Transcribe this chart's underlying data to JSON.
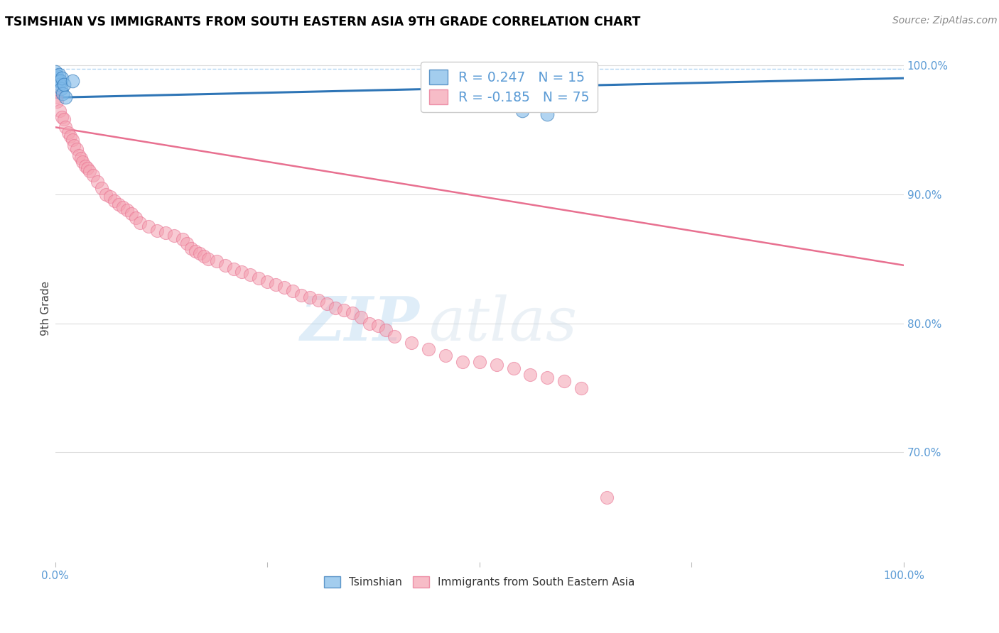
{
  "title": "TSIMSHIAN VS IMMIGRANTS FROM SOUTH EASTERN ASIA 9TH GRADE CORRELATION CHART",
  "source": "Source: ZipAtlas.com",
  "ylabel": "9th Grade",
  "legend_blue_label": "Tsimshian",
  "legend_pink_label": "Immigrants from South Eastern Asia",
  "r_blue": 0.247,
  "n_blue": 15,
  "r_pink": -0.185,
  "n_pink": 75,
  "blue_points_x": [
    0.0,
    0.001,
    0.002,
    0.003,
    0.004,
    0.005,
    0.006,
    0.007,
    0.008,
    0.009,
    0.01,
    0.012,
    0.02,
    0.55,
    0.58
  ],
  "blue_points_y": [
    0.995,
    0.99,
    0.992,
    0.988,
    0.993,
    0.985,
    0.988,
    0.982,
    0.99,
    0.978,
    0.985,
    0.975,
    0.988,
    0.965,
    0.962
  ],
  "pink_points_x": [
    0.0,
    0.001,
    0.002,
    0.005,
    0.008,
    0.01,
    0.012,
    0.015,
    0.018,
    0.02,
    0.022,
    0.025,
    0.028,
    0.03,
    0.032,
    0.035,
    0.038,
    0.04,
    0.045,
    0.05,
    0.055,
    0.06,
    0.065,
    0.07,
    0.075,
    0.08,
    0.085,
    0.09,
    0.095,
    0.1,
    0.11,
    0.12,
    0.13,
    0.14,
    0.15,
    0.155,
    0.16,
    0.165,
    0.17,
    0.175,
    0.18,
    0.19,
    0.2,
    0.21,
    0.22,
    0.23,
    0.24,
    0.25,
    0.26,
    0.27,
    0.28,
    0.29,
    0.3,
    0.31,
    0.32,
    0.33,
    0.34,
    0.35,
    0.36,
    0.37,
    0.38,
    0.39,
    0.4,
    0.42,
    0.44,
    0.46,
    0.48,
    0.5,
    0.52,
    0.54,
    0.56,
    0.58,
    0.6,
    0.62,
    0.65
  ],
  "pink_points_y": [
    0.98,
    0.975,
    0.972,
    0.965,
    0.96,
    0.958,
    0.952,
    0.948,
    0.945,
    0.942,
    0.938,
    0.935,
    0.93,
    0.928,
    0.925,
    0.922,
    0.92,
    0.918,
    0.915,
    0.91,
    0.905,
    0.9,
    0.898,
    0.895,
    0.892,
    0.89,
    0.888,
    0.885,
    0.882,
    0.878,
    0.875,
    0.872,
    0.87,
    0.868,
    0.865,
    0.862,
    0.858,
    0.856,
    0.854,
    0.852,
    0.85,
    0.848,
    0.845,
    0.842,
    0.84,
    0.838,
    0.835,
    0.832,
    0.83,
    0.828,
    0.825,
    0.822,
    0.82,
    0.818,
    0.815,
    0.812,
    0.81,
    0.808,
    0.805,
    0.8,
    0.798,
    0.795,
    0.79,
    0.785,
    0.78,
    0.775,
    0.77,
    0.77,
    0.768,
    0.765,
    0.76,
    0.758,
    0.755,
    0.75,
    0.665
  ],
  "blue_line_x": [
    0.0,
    1.0
  ],
  "blue_line_y": [
    0.975,
    0.99
  ],
  "pink_line_x": [
    0.0,
    1.0
  ],
  "pink_line_y": [
    0.952,
    0.845
  ],
  "dashed_line_y": 0.997,
  "ylim_min": 0.615,
  "ylim_max": 1.008,
  "xlim_min": 0.0,
  "xlim_max": 1.0,
  "right_yticks": [
    1.0,
    0.9,
    0.8,
    0.7
  ],
  "right_yticklabels": [
    "100.0%",
    "90.0%",
    "80.0%",
    "70.0%"
  ],
  "watermark_zip": "ZIP",
  "watermark_atlas": "atlas",
  "background_color": "#ffffff",
  "blue_color": "#7db8e8",
  "pink_color": "#f4a0b0",
  "blue_line_color": "#2e75b6",
  "pink_line_color": "#e87090",
  "title_color": "#000000",
  "axis_tick_color": "#5b9bd5",
  "grid_color": "#cccccc",
  "source_color": "#888888"
}
